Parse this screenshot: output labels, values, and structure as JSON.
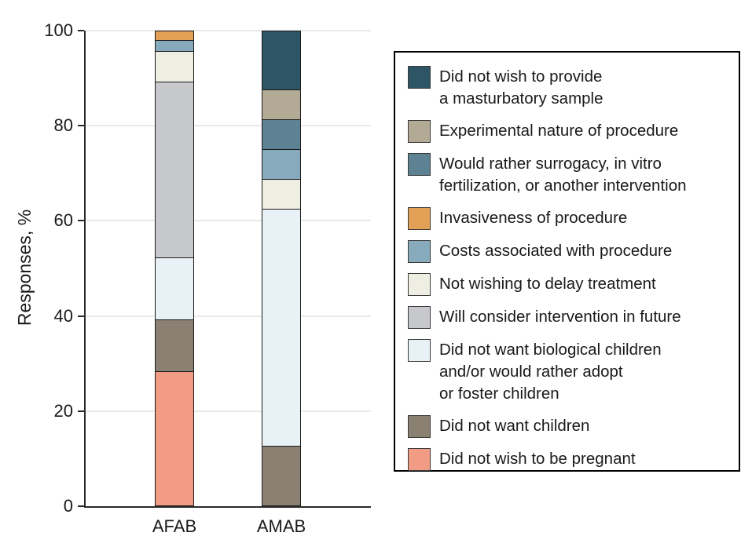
{
  "figure": {
    "background": "#ffffff",
    "text_color": "#1a1a1a",
    "axis_color": "#2b2b2b",
    "grid_color": "#e9e9e9",
    "segment_border_color": "#1a1a1a"
  },
  "axes": {
    "y_label": "Responses, %",
    "y_ticks": [
      "100",
      "80",
      "60",
      "40",
      "20",
      "0"
    ],
    "x_labels": [
      "AFAB",
      "AMAB"
    ]
  },
  "chart_data": {
    "type": "bar",
    "stacked": true,
    "title": "",
    "xlabel": "",
    "ylabel": "Responses, %",
    "ylim": [
      0,
      100
    ],
    "yticks": [
      0,
      20,
      40,
      60,
      80,
      100
    ],
    "grid": true,
    "legend_position": "right",
    "categories": [
      "AFAB",
      "AMAB"
    ],
    "series": [
      {
        "name": "Did not wish to provide a masturbatory sample",
        "color": "#2e5565",
        "values": [
          0,
          12.5
        ]
      },
      {
        "name": "Experimental nature of procedure",
        "color": "#b3aa95",
        "values": [
          0,
          6.3
        ]
      },
      {
        "name": "Would rather surrogacy, in vitro fertilization, or another intervention",
        "color": "#5d8294",
        "values": [
          0,
          6.3
        ]
      },
      {
        "name": "Invasiveness of procedure",
        "color": "#e2a156",
        "values": [
          2.2,
          0
        ]
      },
      {
        "name": "Costs associated with procedure",
        "color": "#87abbc",
        "values": [
          2.2,
          6.3
        ]
      },
      {
        "name": "Not wishing to delay treatment",
        "color": "#efeee3",
        "values": [
          6.5,
          6.3
        ]
      },
      {
        "name": "Will consider intervention in future",
        "color": "#c6c8cb",
        "values": [
          37.0,
          0
        ]
      },
      {
        "name": "Did not want biological children and/or would rather adopt or foster children",
        "color": "#e8f1f6",
        "values": [
          13.0,
          50.0
        ]
      },
      {
        "name": "Did not want children",
        "color": "#8b8173",
        "values": [
          10.9,
          12.5
        ]
      },
      {
        "name": "Did not wish to be pregnant",
        "color": "#f29c86",
        "values": [
          28.3,
          0
        ]
      }
    ]
  },
  "legend": {
    "items": [
      {
        "color": "#2e5565",
        "lines": [
          "Did not wish to provide",
          "a masturbatory sample"
        ]
      },
      {
        "color": "#b3aa95",
        "lines": [
          "Experimental nature of procedure"
        ]
      },
      {
        "color": "#5d8294",
        "lines": [
          "Would rather surrogacy, in vitro",
          "fertilization, or another intervention"
        ]
      },
      {
        "color": "#e2a156",
        "lines": [
          "Invasiveness of procedure"
        ]
      },
      {
        "color": "#87abbc",
        "lines": [
          "Costs associated with procedure"
        ]
      },
      {
        "color": "#efeee3",
        "lines": [
          "Not wishing to delay treatment"
        ]
      },
      {
        "color": "#c6c8cb",
        "lines": [
          "Will consider intervention in future"
        ]
      },
      {
        "color": "#e8f1f6",
        "lines": [
          "Did not want biological children",
          "and/or would rather adopt",
          "or foster children"
        ]
      },
      {
        "color": "#8b8173",
        "lines": [
          "Did not want children"
        ]
      },
      {
        "color": "#f29c86",
        "lines": [
          "Did not wish to be pregnant"
        ]
      }
    ]
  }
}
